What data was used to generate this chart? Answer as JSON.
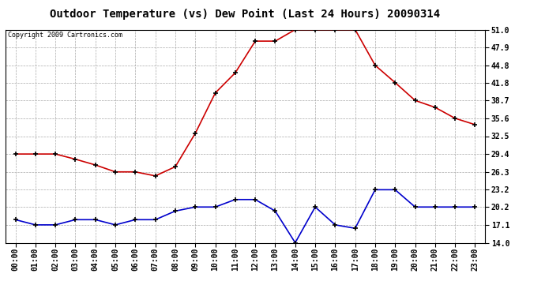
{
  "title": "Outdoor Temperature (vs) Dew Point (Last 24 Hours) 20090314",
  "copyright": "Copyright 2009 Cartronics.com",
  "hours": [
    "00:00",
    "01:00",
    "02:00",
    "03:00",
    "04:00",
    "05:00",
    "06:00",
    "07:00",
    "08:00",
    "09:00",
    "10:00",
    "11:00",
    "12:00",
    "13:00",
    "14:00",
    "15:00",
    "16:00",
    "17:00",
    "18:00",
    "19:00",
    "20:00",
    "21:00",
    "22:00",
    "23:00"
  ],
  "temp": [
    29.4,
    29.4,
    29.4,
    28.5,
    27.5,
    26.3,
    26.3,
    25.6,
    27.2,
    33.0,
    40.0,
    43.5,
    49.0,
    49.0,
    51.0,
    51.0,
    51.0,
    51.0,
    44.8,
    41.8,
    38.7,
    37.5,
    35.6,
    34.5
  ],
  "dew": [
    18.0,
    17.1,
    17.1,
    18.0,
    18.0,
    17.1,
    18.0,
    18.0,
    19.5,
    20.2,
    20.2,
    21.5,
    21.5,
    19.5,
    14.0,
    20.2,
    17.1,
    16.5,
    23.2,
    23.2,
    20.2,
    20.2,
    20.2,
    20.2
  ],
  "temp_color": "#cc0000",
  "dew_color": "#0000cc",
  "bg_color": "#ffffff",
  "grid_color": "#aaaaaa",
  "ylim": [
    14.0,
    51.0
  ],
  "yticks": [
    14.0,
    17.1,
    20.2,
    23.2,
    26.3,
    29.4,
    32.5,
    35.6,
    38.7,
    41.8,
    44.8,
    47.9,
    51.0
  ],
  "title_fontsize": 10,
  "copyright_fontsize": 6,
  "tick_fontsize": 7,
  "marker": "+",
  "markersize": 5,
  "markeredgewidth": 1.2,
  "linewidth": 1.2
}
